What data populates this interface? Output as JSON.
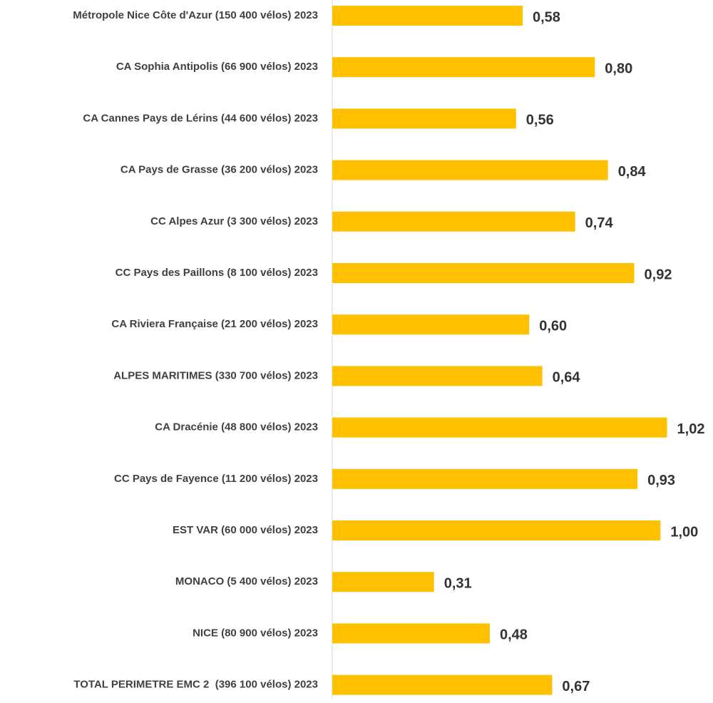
{
  "chart_data": {
    "type": "barh",
    "categories": [
      "Métropole Nice Côte d'Azur (150 400 vélos) 2023",
      "CA Sophia Antipolis (66 900 vélos) 2023",
      "CA Cannes Pays de Lérins (44 600 vélos) 2023",
      "CA Pays de Grasse (36 200 vélos) 2023",
      "CC Alpes Azur (3 300 vélos) 2023",
      "CC Pays des Paillons (8 100 vélos) 2023",
      "CA Riviera Française (21 200 vélos) 2023",
      "ALPES MARITIMES (330 700 vélos) 2023",
      "CA Dracénie (48 800 vélos) 2023",
      "CC Pays de Fayence (11 200 vélos) 2023",
      "EST VAR (60 000 vélos) 2023",
      "MONACO (5 400 vélos) 2023",
      "NICE (80 900 vélos) 2023",
      "TOTAL PERIMETRE EMC 2  (396 100 vélos) 2023"
    ],
    "values": [
      0.58,
      0.8,
      0.56,
      0.84,
      0.74,
      0.92,
      0.6,
      0.64,
      1.02,
      0.93,
      1.0,
      0.31,
      0.48,
      0.67
    ],
    "value_labels": [
      "0,58",
      "0,80",
      "0,56",
      "0,84",
      "0,74",
      "0,92",
      "0,60",
      "0,64",
      "1,02",
      "0,93",
      "1,00",
      "0,31",
      "0,48",
      "0,67"
    ],
    "color": "#ffc000",
    "xlim": [
      0,
      1.16
    ]
  }
}
